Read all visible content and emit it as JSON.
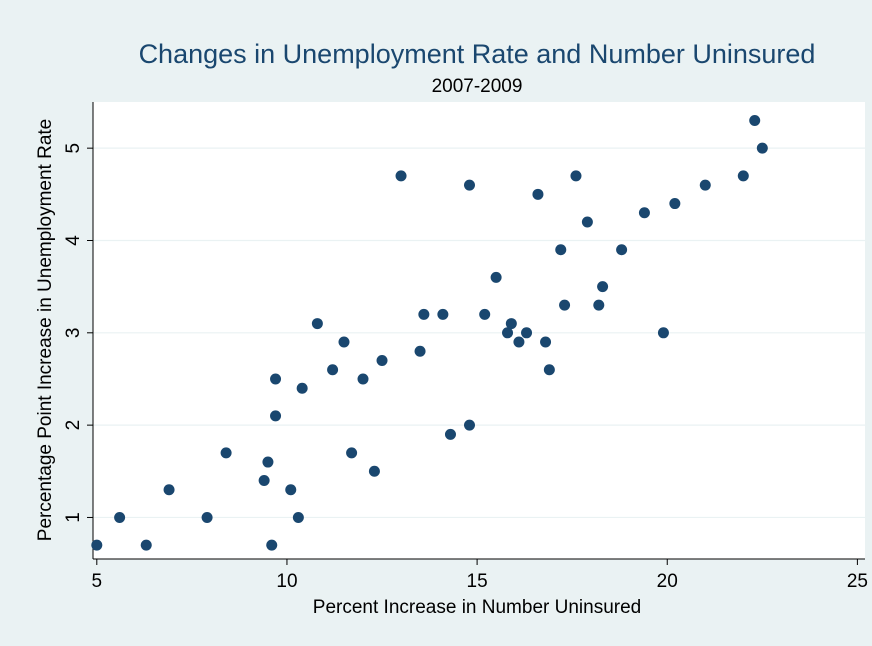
{
  "chart_data": {
    "type": "scatter",
    "title": "Changes in Unemployment Rate and Number Uninsured",
    "subtitle": "2007-2009",
    "xlabel": "Percent Increase in Number Uninsured",
    "ylabel": "Percentage Point Increase in Unemployment Rate",
    "xlim": [
      4.9,
      25.2
    ],
    "ylim": [
      0.55,
      5.5
    ],
    "xticks": [
      5,
      10,
      15,
      20,
      25
    ],
    "yticks": [
      1,
      2,
      3,
      4,
      5
    ],
    "grid": "y",
    "colors": {
      "background": "#eaf2f3",
      "plot": "#ffffff",
      "marker": "#1a476f",
      "title": "#1a476f",
      "grid": "#eaf2f3"
    },
    "points": [
      {
        "x": 5.0,
        "y": 0.7
      },
      {
        "x": 5.6,
        "y": 1.0
      },
      {
        "x": 6.3,
        "y": 0.7
      },
      {
        "x": 6.9,
        "y": 1.3
      },
      {
        "x": 7.9,
        "y": 1.0
      },
      {
        "x": 8.4,
        "y": 1.7
      },
      {
        "x": 9.4,
        "y": 1.4
      },
      {
        "x": 9.5,
        "y": 1.6
      },
      {
        "x": 9.6,
        "y": 0.7
      },
      {
        "x": 9.7,
        "y": 2.1
      },
      {
        "x": 9.7,
        "y": 2.5
      },
      {
        "x": 10.1,
        "y": 1.3
      },
      {
        "x": 10.3,
        "y": 1.0
      },
      {
        "x": 10.4,
        "y": 2.4
      },
      {
        "x": 10.8,
        "y": 3.1
      },
      {
        "x": 11.2,
        "y": 2.6
      },
      {
        "x": 11.5,
        "y": 2.9
      },
      {
        "x": 11.7,
        "y": 1.7
      },
      {
        "x": 12.0,
        "y": 2.5
      },
      {
        "x": 12.3,
        "y": 1.5
      },
      {
        "x": 12.5,
        "y": 2.7
      },
      {
        "x": 13.0,
        "y": 4.7
      },
      {
        "x": 13.5,
        "y": 2.8
      },
      {
        "x": 13.6,
        "y": 3.2
      },
      {
        "x": 14.1,
        "y": 3.2
      },
      {
        "x": 14.3,
        "y": 1.9
      },
      {
        "x": 14.8,
        "y": 2.0
      },
      {
        "x": 14.8,
        "y": 4.6
      },
      {
        "x": 15.2,
        "y": 3.2
      },
      {
        "x": 15.5,
        "y": 3.6
      },
      {
        "x": 15.8,
        "y": 3.0
      },
      {
        "x": 15.9,
        "y": 3.1
      },
      {
        "x": 16.1,
        "y": 2.9
      },
      {
        "x": 16.3,
        "y": 3.0
      },
      {
        "x": 16.6,
        "y": 4.5
      },
      {
        "x": 16.8,
        "y": 2.9
      },
      {
        "x": 16.9,
        "y": 2.6
      },
      {
        "x": 17.2,
        "y": 3.9
      },
      {
        "x": 17.3,
        "y": 3.3
      },
      {
        "x": 17.6,
        "y": 4.7
      },
      {
        "x": 17.9,
        "y": 4.2
      },
      {
        "x": 18.2,
        "y": 3.3
      },
      {
        "x": 18.3,
        "y": 3.5
      },
      {
        "x": 18.8,
        "y": 3.9
      },
      {
        "x": 19.4,
        "y": 4.3
      },
      {
        "x": 19.9,
        "y": 3.0
      },
      {
        "x": 20.2,
        "y": 4.4
      },
      {
        "x": 21.0,
        "y": 4.6
      },
      {
        "x": 22.0,
        "y": 4.7
      },
      {
        "x": 22.3,
        "y": 5.3
      },
      {
        "x": 22.5,
        "y": 5.0
      }
    ]
  }
}
